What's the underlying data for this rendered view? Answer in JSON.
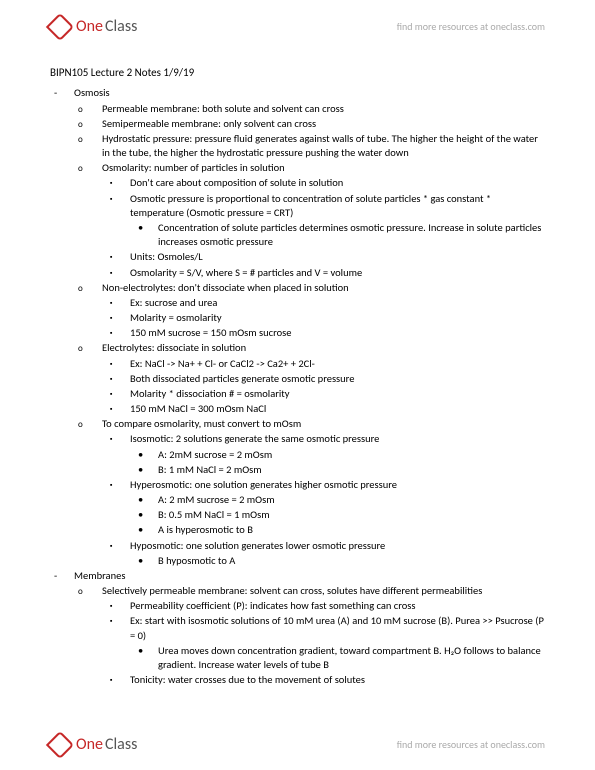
{
  "brand": {
    "left": "One",
    "right": "Class",
    "tagline": "find more resources at oneclass.com"
  },
  "title": "BIPN105 Lecture 2 Notes 1/9/19",
  "bullets": [
    {
      "lvl": 1,
      "t": "Osmosis"
    },
    {
      "lvl": 2,
      "t": "Permeable membrane: both solute and solvent can cross"
    },
    {
      "lvl": 2,
      "t": "Semipermeable membrane: only solvent can cross"
    },
    {
      "lvl": 2,
      "t": "Hydrostatic pressure: pressure fluid generates against walls of tube. The higher the height of the water in the tube, the higher the hydrostatic pressure pushing the water down"
    },
    {
      "lvl": 2,
      "t": "Osmolarity: number of particles in solution"
    },
    {
      "lvl": 3,
      "t": "Don't care about composition of solute in solution"
    },
    {
      "lvl": 3,
      "t": "Osmotic pressure is proportional to concentration of solute particles * gas constant * temperature (Osmotic pressure = CRT)"
    },
    {
      "lvl": 4,
      "t": "Concentration of solute particles determines osmotic pressure. Increase in solute particles increases osmotic pressure"
    },
    {
      "lvl": 3,
      "t": "Units: Osmoles/L"
    },
    {
      "lvl": 3,
      "t": "Osmolarity = S/V, where S = # particles and V = volume"
    },
    {
      "lvl": 2,
      "t": "Non-electrolytes: don't dissociate when placed in solution"
    },
    {
      "lvl": 3,
      "t": "Ex: sucrose and urea"
    },
    {
      "lvl": 3,
      "t": "Molarity = osmolarity"
    },
    {
      "lvl": 3,
      "t": "150 mM sucrose = 150 mOsm sucrose"
    },
    {
      "lvl": 2,
      "t": "Electrolytes: dissociate in solution"
    },
    {
      "lvl": 3,
      "t": "Ex: NaCl -> Na+ + Cl- or CaCl2 -> Ca2+ + 2Cl-"
    },
    {
      "lvl": 3,
      "t": "Both dissociated particles generate osmotic pressure"
    },
    {
      "lvl": 3,
      "t": "Molarity * dissociation # = osmolarity"
    },
    {
      "lvl": 3,
      "t": "150 mM NaCl = 300 mOsm NaCl"
    },
    {
      "lvl": 2,
      "t": "To compare osmolarity, must convert to mOsm"
    },
    {
      "lvl": 3,
      "t": "Isosmotic: 2 solutions generate the same osmotic pressure"
    },
    {
      "lvl": 4,
      "t": "A: 2mM sucrose = 2 mOsm"
    },
    {
      "lvl": 4,
      "t": "B: 1 mM NaCl = 2 mOsm"
    },
    {
      "lvl": 3,
      "t": "Hyperosmotic: one solution generates higher osmotic pressure"
    },
    {
      "lvl": 4,
      "t": "A: 2 mM sucrose = 2 mOsm"
    },
    {
      "lvl": 4,
      "t": "B: 0.5 mM NaCl = 1 mOsm"
    },
    {
      "lvl": 4,
      "t": "A is hyperosmotic to B"
    },
    {
      "lvl": 3,
      "t": "Hyposmotic: one solution generates lower osmotic pressure"
    },
    {
      "lvl": 4,
      "t": "B hyposmotic to A"
    },
    {
      "lvl": 1,
      "t": "Membranes"
    },
    {
      "lvl": 2,
      "t": "Selectively permeable membrane: solvent can cross, solutes have different permeabilities"
    },
    {
      "lvl": 3,
      "t": "Permeability coefficient (P): indicates how fast something can cross"
    },
    {
      "lvl": 3,
      "t": "Ex: start with isosmotic solutions of 10 mM urea (A) and 10 mM sucrose (B). Purea >> Psucrose (P = 0)"
    },
    {
      "lvl": 4,
      "t": "Urea moves down concentration gradient, toward compartment B.  H₂O follows to balance gradient. Increase water levels of tube B"
    },
    {
      "lvl": 3,
      "t": "Tonicity: water crosses due to the movement of solutes"
    }
  ]
}
